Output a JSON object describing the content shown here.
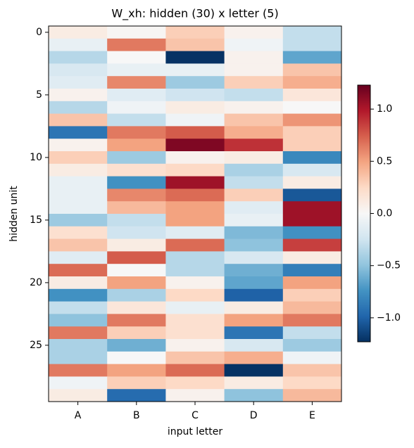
{
  "chart_data": {
    "type": "heatmap",
    "title": "W_xh: hidden (30) x letter (5)",
    "x_label": "input letter",
    "y_label": "hidden unit",
    "categories": [
      "A",
      "B",
      "C",
      "D",
      "E"
    ],
    "ylim": [
      -0.5,
      29.5
    ],
    "yticks": [
      0,
      5,
      10,
      15,
      20,
      25
    ],
    "values": [
      [
        0.1,
        0.02,
        0.3,
        0.05,
        -0.3
      ],
      [
        -0.1,
        0.65,
        0.35,
        -0.05,
        -0.3
      ],
      [
        -0.35,
        0.0,
        -1.22,
        0.05,
        -0.65
      ],
      [
        -0.2,
        -0.1,
        -0.1,
        0.05,
        0.35
      ],
      [
        -0.15,
        0.6,
        -0.45,
        0.3,
        0.45
      ],
      [
        0.05,
        -0.15,
        -0.25,
        -0.3,
        0.15
      ],
      [
        -0.35,
        -0.05,
        0.1,
        0.05,
        0.0
      ],
      [
        0.35,
        -0.3,
        -0.05,
        0.35,
        0.55
      ],
      [
        -0.9,
        0.65,
        0.75,
        0.45,
        0.3
      ],
      [
        0.05,
        0.5,
        1.15,
        0.9,
        0.3
      ],
      [
        0.3,
        -0.45,
        0.05,
        0.1,
        -0.8
      ],
      [
        0.1,
        0.2,
        0.25,
        -0.4,
        -0.2
      ],
      [
        -0.1,
        -0.75,
        1.05,
        -0.3,
        0.1
      ],
      [
        -0.1,
        0.6,
        0.7,
        0.3,
        -1.05
      ],
      [
        -0.1,
        0.4,
        0.5,
        -0.15,
        1.05
      ],
      [
        -0.45,
        -0.3,
        0.5,
        -0.1,
        1.05
      ],
      [
        0.2,
        -0.25,
        -0.15,
        -0.55,
        -0.75
      ],
      [
        0.35,
        0.1,
        0.7,
        -0.5,
        0.85
      ],
      [
        -0.15,
        0.75,
        -0.35,
        -0.2,
        0.1
      ],
      [
        0.7,
        0.0,
        -0.35,
        -0.6,
        -0.85
      ],
      [
        0.1,
        0.5,
        0.05,
        -0.65,
        0.5
      ],
      [
        -0.75,
        -0.4,
        0.25,
        -1.0,
        0.3
      ],
      [
        -0.3,
        0.15,
        -0.1,
        0.1,
        0.4
      ],
      [
        -0.5,
        0.65,
        0.2,
        0.5,
        0.65
      ],
      [
        0.65,
        0.3,
        0.2,
        -0.9,
        -0.3
      ],
      [
        -0.4,
        -0.6,
        0.05,
        -0.2,
        -0.45
      ],
      [
        -0.4,
        0.0,
        0.35,
        0.45,
        -0.05
      ],
      [
        0.65,
        0.5,
        0.7,
        -1.22,
        0.35
      ],
      [
        -0.05,
        0.3,
        0.25,
        0.1,
        0.25
      ],
      [
        0.1,
        -0.95,
        0.05,
        -0.5,
        0.4
      ]
    ],
    "clim": [
      -1.23,
      1.23
    ],
    "colorbar_ticks": [
      {
        "value": -1,
        "label": "−1.0"
      },
      {
        "value": -0.5,
        "label": "−0.5"
      },
      {
        "value": 0,
        "label": "0.0"
      },
      0.5,
      {
        "value": 1,
        "label": "1.0"
      }
    ],
    "colormap": [
      "#053061",
      "#2166ac",
      "#4393c3",
      "#92c5de",
      "#d1e5f0",
      "#f7f7f7",
      "#fddbc7",
      "#f4a582",
      "#d6604d",
      "#b2182b",
      "#67001f"
    ]
  }
}
